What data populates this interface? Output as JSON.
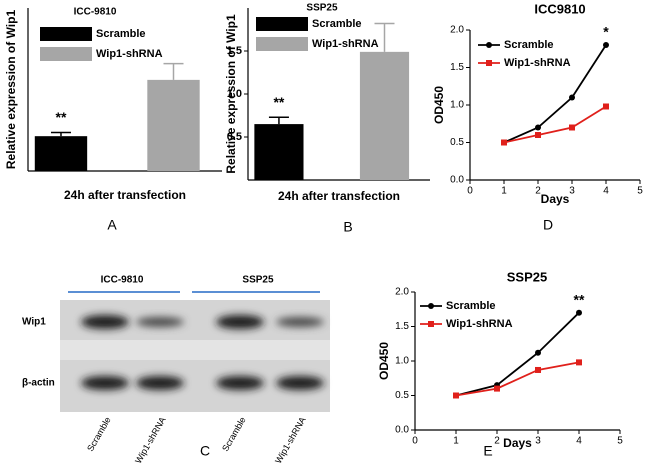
{
  "chart_data": [
    {
      "type": "bar",
      "panel_label": "A",
      "title": "ICC-9810",
      "y_label": "Relative expression of Wip1",
      "x_label": "24h after transfection",
      "ylim": [
        0,
        2.2
      ],
      "series": [
        {
          "name": "Scramble",
          "color": "#000000",
          "values": [
            0.47
          ],
          "errors": [
            0.05
          ]
        },
        {
          "name": "Wip1-shRNA",
          "color": "#a6a6a6",
          "values": [
            1.23
          ],
          "errors": [
            0.22
          ]
        }
      ],
      "annotation": "**"
    },
    {
      "type": "bar",
      "panel_label": "B",
      "title": "SSP25",
      "y_label": "Relative expression of Wip1",
      "x_label": "24h after transfection",
      "ylim": [
        0,
        2.0
      ],
      "yticks": [
        0.5,
        {
          "value": 1,
          "label": "1.0"
        },
        1.5
      ],
      "series": [
        {
          "name": "Scramble",
          "color": "#000000",
          "values": [
            0.65
          ],
          "errors": [
            0.08
          ]
        },
        {
          "name": "Wip1-shRNA",
          "color": "#a6a6a6",
          "values": [
            1.49
          ],
          "errors": [
            0.33
          ]
        }
      ],
      "annotation": "**"
    },
    {
      "type": "line",
      "panel_label": "D",
      "title": "ICC9810",
      "y_label": "OD450",
      "x_label": "Days",
      "x": [
        1,
        2,
        3,
        4
      ],
      "xlim": [
        0,
        5
      ],
      "xticks": [
        0,
        1,
        2,
        3,
        4,
        5
      ],
      "ylim": [
        0,
        2
      ],
      "yticks": [
        {
          "value": 0,
          "label": "0.0"
        },
        0.5,
        {
          "value": 1,
          "label": "1.0"
        },
        1.5,
        {
          "value": 2,
          "label": "2.0"
        }
      ],
      "series": [
        {
          "name": "Scramble",
          "color": "#000000",
          "marker": "circle",
          "values": [
            0.5,
            0.7,
            1.1,
            1.8
          ]
        },
        {
          "name": "Wip1-shRNA",
          "color": "#e0201b",
          "marker": "square",
          "values": [
            0.5,
            0.6,
            0.7,
            0.98
          ]
        }
      ],
      "annotation": "*"
    },
    {
      "type": "line",
      "panel_label": "E",
      "title": "SSP25",
      "y_label": "OD450",
      "x_label": "Days",
      "x": [
        1,
        2,
        3,
        4
      ],
      "xlim": [
        0,
        5
      ],
      "xticks": [
        0,
        1,
        2,
        3,
        4,
        5
      ],
      "ylim": [
        0,
        2
      ],
      "yticks": [
        {
          "value": 0,
          "label": "0.0"
        },
        0.5,
        {
          "value": 1,
          "label": "1.0"
        },
        1.5,
        {
          "value": 2,
          "label": "2.0"
        }
      ],
      "series": [
        {
          "name": "Scramble",
          "color": "#000000",
          "marker": "circle",
          "values": [
            0.5,
            0.65,
            1.12,
            1.7
          ]
        },
        {
          "name": "Wip1-shRNA",
          "color": "#e0201b",
          "marker": "square",
          "values": [
            0.5,
            0.6,
            0.87,
            0.98
          ]
        }
      ],
      "annotation": "**"
    }
  ],
  "blot": {
    "panel_label": "C",
    "groups": [
      "ICC-9810",
      "SSP25"
    ],
    "rows": [
      "Wip1",
      "β-actin"
    ],
    "lanes": [
      "Scramble",
      "Wip1-shRNA",
      "Scramble",
      "Wip1-shRNA"
    ]
  }
}
